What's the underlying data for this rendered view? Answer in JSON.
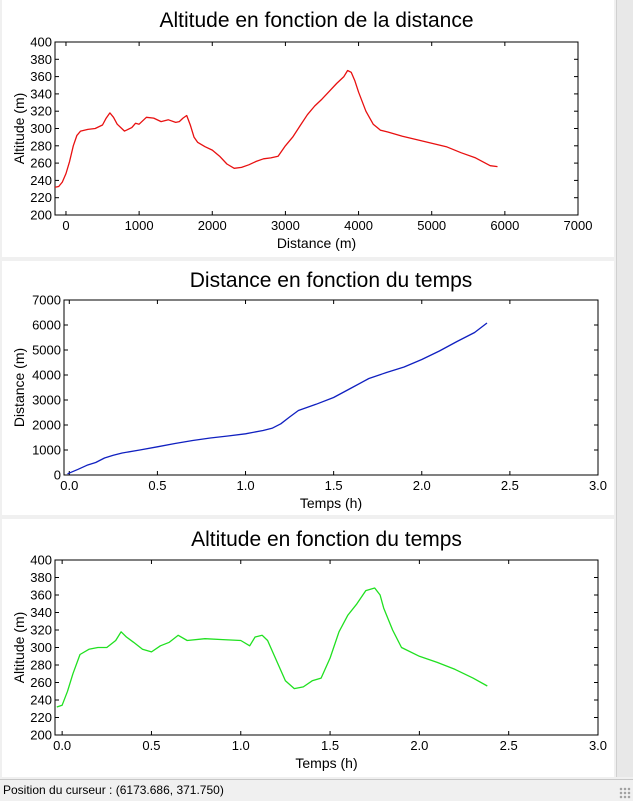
{
  "status_bar": {
    "label": "Position du curseur : (6173.686, 371.750)"
  },
  "chart_data": [
    {
      "type": "line",
      "title": "Altitude en fonction de la distance",
      "xlabel": "Distance (m)",
      "ylabel": "Altitude (m)",
      "xlim": [
        -150,
        7000
      ],
      "ylim": [
        200,
        400
      ],
      "xticks": [
        0,
        1000,
        2000,
        3000,
        4000,
        5000,
        6000,
        7000
      ],
      "yticks": [
        200,
        220,
        240,
        260,
        280,
        300,
        320,
        340,
        360,
        380,
        400
      ],
      "xtick_labels": [
        "0",
        "1000",
        "2000",
        "3000",
        "4000",
        "5000",
        "6000",
        "7000"
      ],
      "ytick_labels": [
        "200",
        "220",
        "240",
        "260",
        "280",
        "300",
        "320",
        "340",
        "360",
        "380",
        "400"
      ],
      "grid": false,
      "color": "#e81010",
      "series": [
        {
          "x": [
            -150,
            -100,
            -50,
            0,
            50,
            100,
            150,
            200,
            300,
            400,
            500,
            550,
            600,
            650,
            700,
            800,
            900,
            950,
            1000,
            1100,
            1200,
            1300,
            1400,
            1500,
            1550,
            1600,
            1650,
            1700,
            1750,
            1800,
            1900,
            2000,
            2100,
            2200,
            2300,
            2400,
            2500,
            2600,
            2700,
            2800,
            2900,
            3000,
            3100,
            3200,
            3300,
            3400,
            3500,
            3600,
            3700,
            3800,
            3850,
            3900,
            3950,
            4000,
            4100,
            4200,
            4300,
            4400,
            4600,
            4800,
            5000,
            5200,
            5400,
            5600,
            5800,
            5900
          ],
          "y": [
            232,
            233,
            238,
            248,
            262,
            280,
            292,
            297,
            299,
            300,
            304,
            312,
            318,
            313,
            305,
            297,
            301,
            306,
            305,
            313,
            312,
            308,
            310,
            307,
            308,
            312,
            315,
            304,
            290,
            284,
            279,
            275,
            268,
            259,
            254,
            255,
            258,
            262,
            265,
            266,
            268,
            280,
            290,
            303,
            316,
            326,
            334,
            343,
            352,
            360,
            367,
            365,
            355,
            342,
            320,
            305,
            298,
            296,
            291,
            287,
            283,
            279,
            272,
            266,
            257,
            256
          ]
        }
      ]
    },
    {
      "type": "line",
      "title": "Distance en fonction du temps",
      "xlabel": "Temps (h)",
      "ylabel": "Distance (m)",
      "xlim": [
        -0.03,
        3.0
      ],
      "ylim": [
        0,
        7000
      ],
      "xticks": [
        0,
        0.5,
        1.0,
        1.5,
        2.0,
        2.5,
        3.0
      ],
      "yticks": [
        0,
        1000,
        2000,
        3000,
        4000,
        5000,
        6000,
        7000
      ],
      "xtick_labels": [
        "0.0",
        "0.5",
        "1.0",
        "1.5",
        "2.0",
        "2.5",
        "3.0"
      ],
      "ytick_labels": [
        "0",
        "1000",
        "2000",
        "3000",
        "4000",
        "5000",
        "6000",
        "7000"
      ],
      "grid": false,
      "color": "#1020c0",
      "series": [
        {
          "x": [
            -0.01,
            0.05,
            0.1,
            0.15,
            0.2,
            0.25,
            0.3,
            0.4,
            0.5,
            0.6,
            0.7,
            0.8,
            0.9,
            1.0,
            1.1,
            1.15,
            1.2,
            1.25,
            1.3,
            1.4,
            1.5,
            1.6,
            1.7,
            1.8,
            1.9,
            2.0,
            2.1,
            2.2,
            2.3,
            2.37
          ],
          "y": [
            50,
            230,
            390,
            500,
            680,
            790,
            880,
            1000,
            1130,
            1260,
            1380,
            1480,
            1560,
            1650,
            1780,
            1870,
            2050,
            2320,
            2580,
            2830,
            3100,
            3480,
            3860,
            4100,
            4320,
            4620,
            4960,
            5340,
            5700,
            6080
          ]
        }
      ]
    },
    {
      "type": "line",
      "title": "Altitude en fonction du temps",
      "xlabel": "Temps (h)",
      "ylabel": "Altitude (m)",
      "xlim": [
        -0.04,
        3.0
      ],
      "ylim": [
        200,
        400
      ],
      "xticks": [
        0,
        0.5,
        1.0,
        1.5,
        2.0,
        2.5,
        3.0
      ],
      "yticks": [
        200,
        220,
        240,
        260,
        280,
        300,
        320,
        340,
        360,
        380,
        400
      ],
      "xtick_labels": [
        "0.0",
        "0.5",
        "1.0",
        "1.5",
        "2.0",
        "2.5",
        "3.0"
      ],
      "ytick_labels": [
        "200",
        "220",
        "240",
        "260",
        "280",
        "300",
        "320",
        "340",
        "360",
        "380",
        "400"
      ],
      "grid": false,
      "color": "#20e020",
      "series": [
        {
          "x": [
            -0.03,
            0.0,
            0.03,
            0.06,
            0.1,
            0.15,
            0.2,
            0.25,
            0.3,
            0.33,
            0.36,
            0.4,
            0.45,
            0.5,
            0.55,
            0.6,
            0.65,
            0.7,
            0.8,
            0.9,
            1.0,
            1.05,
            1.08,
            1.12,
            1.15,
            1.2,
            1.25,
            1.3,
            1.35,
            1.4,
            1.45,
            1.5,
            1.55,
            1.6,
            1.65,
            1.7,
            1.75,
            1.78,
            1.8,
            1.85,
            1.9,
            2.0,
            2.1,
            2.2,
            2.3,
            2.38
          ],
          "y": [
            232,
            234,
            250,
            270,
            292,
            298,
            300,
            300,
            308,
            318,
            312,
            306,
            298,
            295,
            302,
            306,
            314,
            308,
            310,
            309,
            308,
            302,
            312,
            314,
            308,
            285,
            262,
            253,
            255,
            262,
            265,
            288,
            318,
            337,
            350,
            365,
            368,
            360,
            345,
            320,
            300,
            290,
            283,
            275,
            265,
            256
          ]
        }
      ]
    }
  ]
}
